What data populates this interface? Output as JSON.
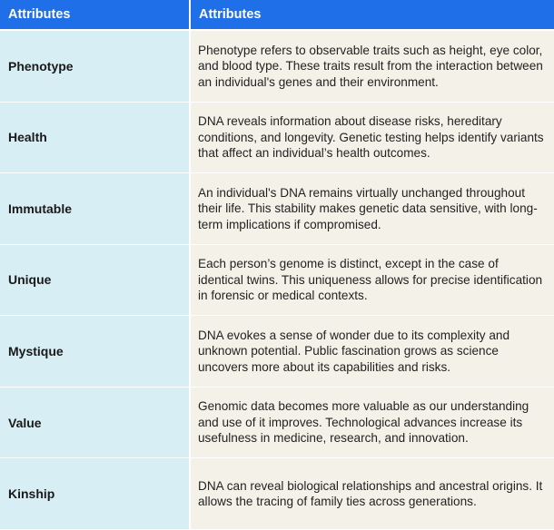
{
  "header": {
    "col1": "Attributes",
    "col2": "Attributes"
  },
  "rows": [
    {
      "attribute": "Phenotype",
      "description": "Phenotype refers to observable traits such as height, eye color, and blood type. These traits result from the interaction between an individual's genes and their environment."
    },
    {
      "attribute": "Health",
      "description": "DNA reveals information about disease risks, hereditary conditions, and longevity. Genetic testing helps identify variants that affect an individual’s health outcomes."
    },
    {
      "attribute": "Immutable",
      "description": "An individual's DNA remains virtually unchanged throughout their life. This stability makes genetic data sensitive, with long-term implications if compromised."
    },
    {
      "attribute": "Unique",
      "description": "Each person’s genome is distinct, except in the case of identical twins. This uniqueness allows for precise identification in forensic or medical contexts."
    },
    {
      "attribute": "Mystique",
      "description": "DNA evokes a sense of wonder due to its complexity and unknown potential. Public fascination grows as science uncovers more about its capabilities and risks."
    },
    {
      "attribute": "Value",
      "description": "Genomic data becomes more valuable as our understanding and use of it improves. Technological advances increase its usefulness in medicine, research, and innovation."
    },
    {
      "attribute": "Kinship",
      "description": "DNA can reveal biological relationships and ancestral origins. It allows the tracing of family ties across generations."
    }
  ],
  "colors": {
    "header_bg": "#1f6fe8",
    "attr_bg": "#d7eef4",
    "desc_bg": "#f4f2e8"
  }
}
